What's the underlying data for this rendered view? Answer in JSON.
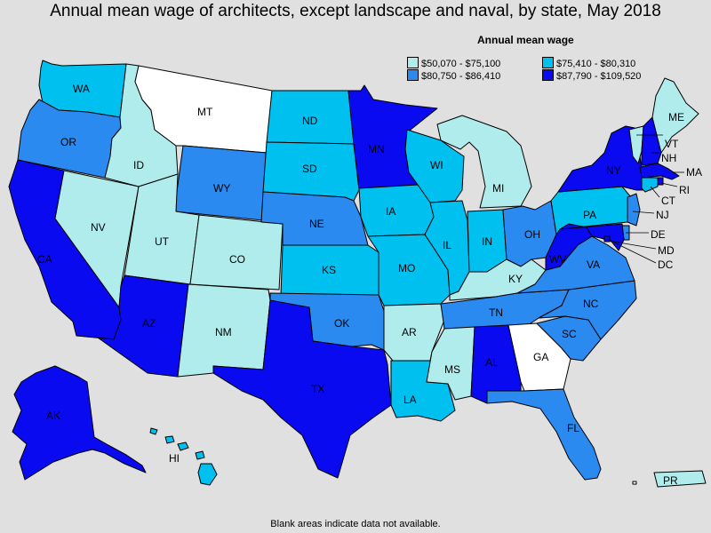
{
  "title": "Annual mean wage of architects, except landscape and naval, by state, May 2018",
  "footnote": "Blank areas indicate data not available.",
  "legend": {
    "title": "Annual mean wage",
    "items": [
      {
        "label": "$50,070 - $75,100",
        "color": "#b0ecec"
      },
      {
        "label": "$75,410 - $80,310",
        "color": "#00c0f0"
      },
      {
        "label": "$80,750 - $86,410",
        "color": "#2a8af0"
      },
      {
        "label": "$87,790 - $109,520",
        "color": "#0a0af0"
      }
    ]
  },
  "no_data_color": "#ffffff",
  "states": [
    {
      "abbr": "WA",
      "bin": 1
    },
    {
      "abbr": "OR",
      "bin": 2
    },
    {
      "abbr": "CA",
      "bin": 3
    },
    {
      "abbr": "NV",
      "bin": 0
    },
    {
      "abbr": "ID",
      "bin": 0
    },
    {
      "abbr": "MT",
      "bin": null
    },
    {
      "abbr": "WY",
      "bin": 2
    },
    {
      "abbr": "UT",
      "bin": 0
    },
    {
      "abbr": "CO",
      "bin": 0
    },
    {
      "abbr": "AZ",
      "bin": 3
    },
    {
      "abbr": "NM",
      "bin": 0
    },
    {
      "abbr": "ND",
      "bin": 1
    },
    {
      "abbr": "SD",
      "bin": 1
    },
    {
      "abbr": "NE",
      "bin": 2
    },
    {
      "abbr": "KS",
      "bin": 1
    },
    {
      "abbr": "OK",
      "bin": 2
    },
    {
      "abbr": "TX",
      "bin": 3
    },
    {
      "abbr": "MN",
      "bin": 3
    },
    {
      "abbr": "IA",
      "bin": 1
    },
    {
      "abbr": "MO",
      "bin": 1
    },
    {
      "abbr": "AR",
      "bin": 0
    },
    {
      "abbr": "LA",
      "bin": 1
    },
    {
      "abbr": "WI",
      "bin": 1
    },
    {
      "abbr": "IL",
      "bin": 1
    },
    {
      "abbr": "MI",
      "bin": 0
    },
    {
      "abbr": "IN",
      "bin": 1
    },
    {
      "abbr": "OH",
      "bin": 2
    },
    {
      "abbr": "KY",
      "bin": 0
    },
    {
      "abbr": "TN",
      "bin": 2
    },
    {
      "abbr": "MS",
      "bin": 0
    },
    {
      "abbr": "AL",
      "bin": 3
    },
    {
      "abbr": "GA",
      "bin": null
    },
    {
      "abbr": "FL",
      "bin": 2
    },
    {
      "abbr": "SC",
      "bin": 2
    },
    {
      "abbr": "NC",
      "bin": 2
    },
    {
      "abbr": "VA",
      "bin": 2
    },
    {
      "abbr": "WV",
      "bin": 3
    },
    {
      "abbr": "PA",
      "bin": 1
    },
    {
      "abbr": "NY",
      "bin": 3
    },
    {
      "abbr": "VT",
      "bin": 0
    },
    {
      "abbr": "NH",
      "bin": 3
    },
    {
      "abbr": "ME",
      "bin": 0
    },
    {
      "abbr": "MA",
      "bin": 3
    },
    {
      "abbr": "RI",
      "bin": 3
    },
    {
      "abbr": "CT",
      "bin": 1
    },
    {
      "abbr": "NJ",
      "bin": 2
    },
    {
      "abbr": "DE",
      "bin": 2
    },
    {
      "abbr": "MD",
      "bin": 3
    },
    {
      "abbr": "DC",
      "bin": 3
    },
    {
      "abbr": "AK",
      "bin": 3
    },
    {
      "abbr": "HI",
      "bin": 1
    },
    {
      "abbr": "PR",
      "bin": 0
    }
  ]
}
